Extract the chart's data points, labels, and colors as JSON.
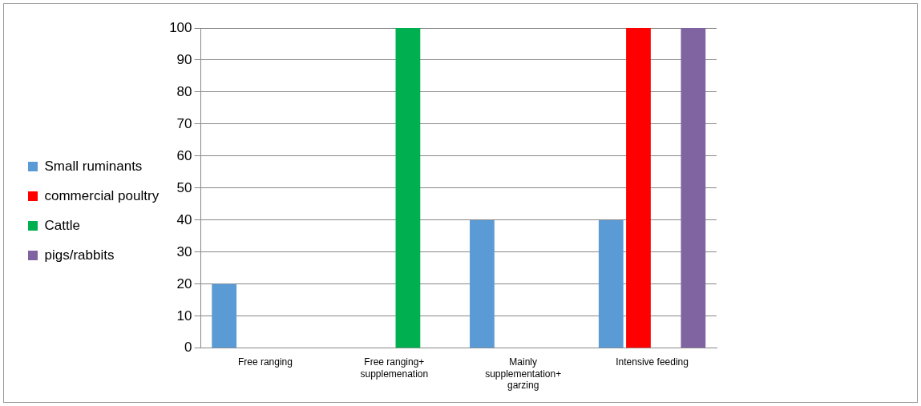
{
  "chart_data": {
    "type": "bar",
    "categories": [
      "Free ranging",
      "Free ranging+ supplemenation",
      "Mainly supplementation+ garzing",
      "Intensive feeding"
    ],
    "series": [
      {
        "name": "Small ruminants",
        "color": "#5b9bd5",
        "values": [
          20,
          null,
          40,
          40
        ]
      },
      {
        "name": "commercial poultry",
        "color": "#ff0000",
        "values": [
          null,
          null,
          null,
          100
        ]
      },
      {
        "name": "Cattle",
        "color": "#00b050",
        "values": [
          null,
          100,
          null,
          null
        ]
      },
      {
        "name": "pigs/rabbits",
        "color": "#8064a2",
        "values": [
          null,
          null,
          null,
          100
        ]
      }
    ],
    "ylim": [
      0,
      100
    ],
    "yticks": [
      0,
      10,
      20,
      30,
      40,
      50,
      60,
      70,
      80,
      90,
      100
    ],
    "grid": "y",
    "legend": "left"
  }
}
